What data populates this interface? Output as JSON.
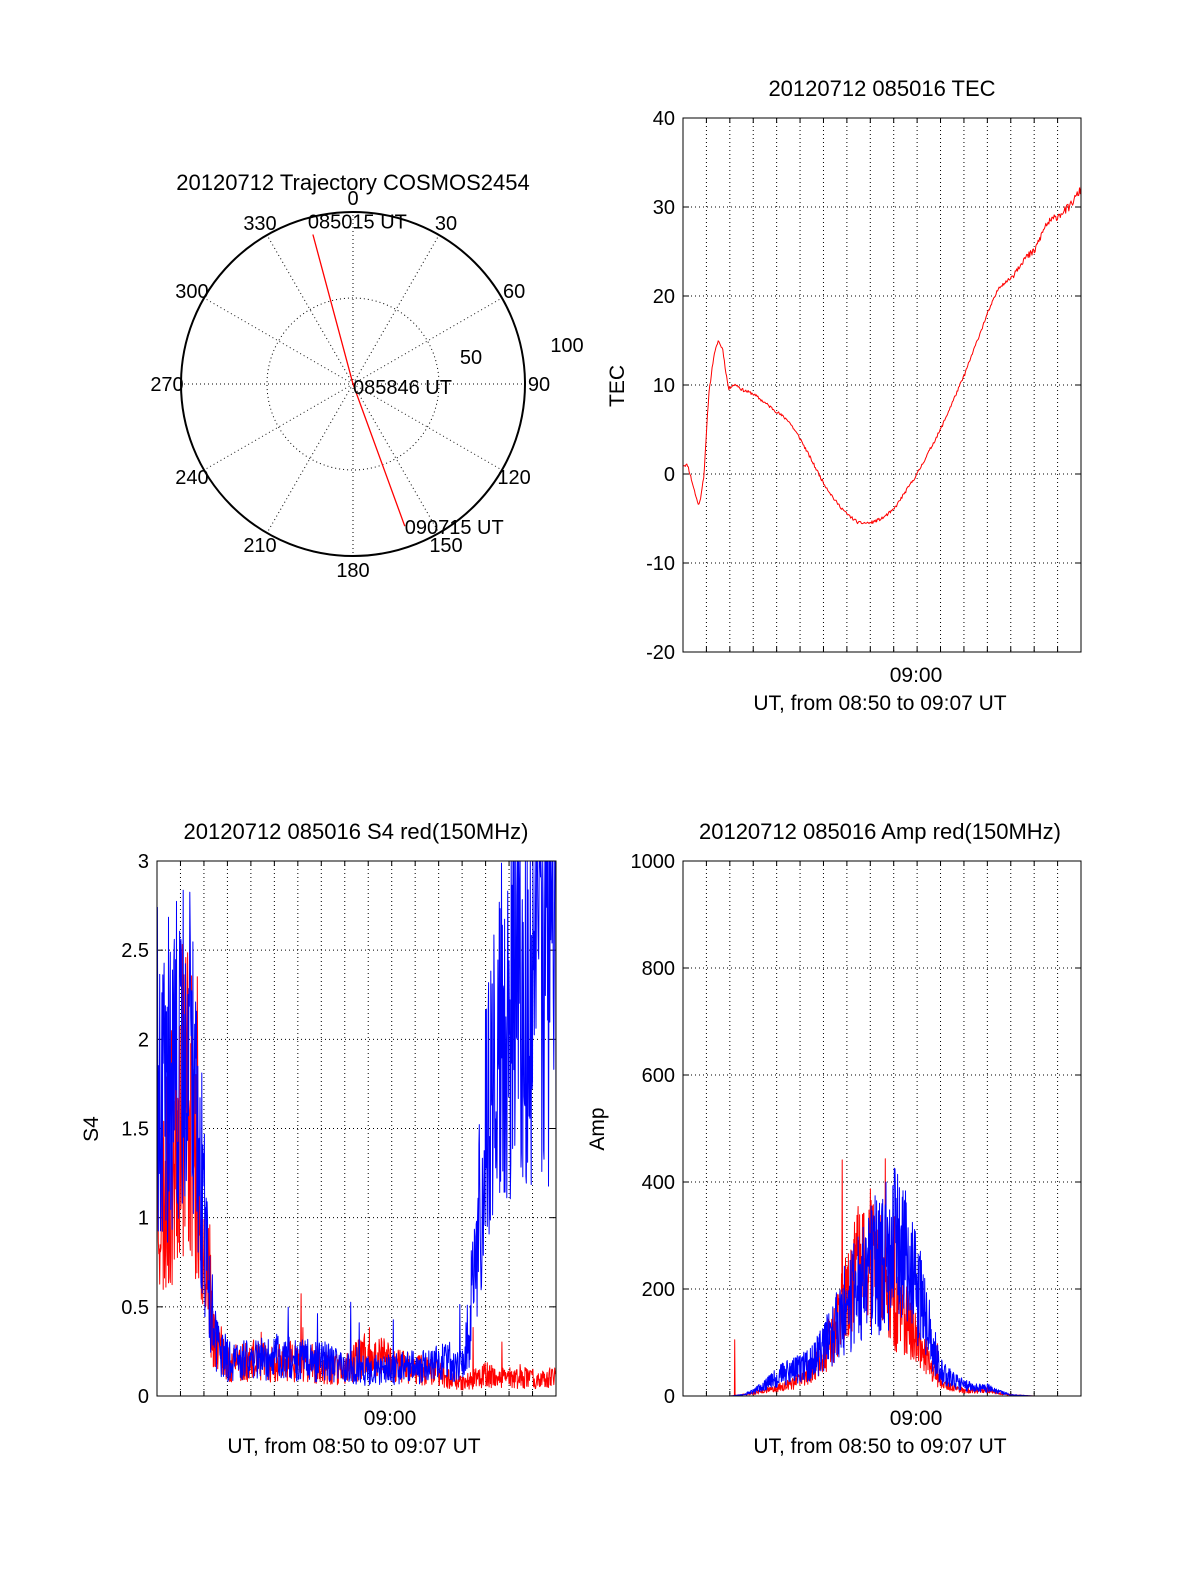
{
  "colors": {
    "red": "#ff0000",
    "blue": "#0000ff"
  },
  "chart_data": [
    {
      "id": "trajectory",
      "type": "polar",
      "title": "20120712 Trajectory COSMOS2454",
      "azimuth_labels": [
        "0",
        "30",
        "60",
        "90",
        "120",
        "150",
        "180",
        "210",
        "240",
        "270",
        "300",
        "330"
      ],
      "radial_labels": [
        "50",
        "100"
      ],
      "radial_max": 100,
      "track": {
        "color": "#ff0000",
        "points": [
          {
            "az": 345,
            "zen": 90,
            "label": "085015 UT"
          },
          {
            "az": 0,
            "zen": 0,
            "label": "085846 UT"
          },
          {
            "az": 160,
            "zen": 88,
            "label": "090715 UT"
          }
        ]
      }
    },
    {
      "id": "tec",
      "type": "line",
      "title": "20120712 085016 TEC",
      "ylabel": "TEC",
      "xlabel": "UT, from 08:50 to 09:07 UT",
      "x_tick_label": "09:00",
      "ylim": [
        -20,
        40
      ],
      "yticks": [
        "-20",
        "-10",
        "0",
        "10",
        "20",
        "30",
        "40"
      ],
      "xlim_minutes": [
        0,
        17.0
      ],
      "series": [
        {
          "color": "#ff0000",
          "x": [
            0.2,
            0.4,
            0.6,
            0.7,
            0.9,
            1.1,
            1.3,
            1.5,
            1.7,
            1.8,
            1.95,
            2.1,
            2.3,
            2.5,
            3.0,
            3.5,
            4.0,
            4.5,
            5.0,
            5.5,
            6.0,
            6.5,
            7.0,
            7.5,
            8.0,
            8.5,
            9.0,
            9.5,
            10.0,
            10.5,
            11.0,
            11.5,
            12.0,
            12.5,
            13.0,
            13.5,
            14.0,
            14.5,
            15.0,
            15.5,
            16.0,
            16.5,
            17.0
          ],
          "y": [
            1,
            -1,
            -3,
            -3.5,
            0,
            9,
            13,
            15,
            14,
            12,
            9.5,
            10,
            10,
            9.5,
            9,
            8,
            7,
            6,
            4,
            1.5,
            -1,
            -3,
            -4.5,
            -5.5,
            -5.5,
            -5,
            -4,
            -2,
            0,
            2.5,
            5,
            8,
            11,
            14.5,
            18,
            21,
            22,
            24,
            25,
            28,
            29,
            30,
            32
          ]
        }
      ]
    },
    {
      "id": "s4",
      "type": "line",
      "title": "20120712 085016 S4 red(150MHz)",
      "ylabel": "S4",
      "xlabel": "UT, from 08:50 to 09:07 UT",
      "x_tick_label": "09:00",
      "ylim": [
        0,
        3
      ],
      "yticks": [
        "0",
        "0.5",
        "1",
        "1.5",
        "2",
        "2.5",
        "3"
      ],
      "xlim_minutes": [
        0,
        17.0
      ],
      "series": [
        {
          "color": "#ff0000",
          "x": [
            0.0,
            0.3,
            0.6,
            0.9,
            1.2,
            1.5,
            1.8,
            2.0,
            2.2,
            2.5,
            3.0,
            4.0,
            5.0,
            6.0,
            7.0,
            8.0,
            8.5,
            9.0,
            10.0,
            11.0,
            12.0,
            12.5,
            13.0,
            13.3,
            13.6,
            14.0,
            14.5,
            15.0,
            15.5,
            16.0,
            16.5,
            17.0
          ],
          "y": [
            1.2,
            1.1,
            1.3,
            1.6,
            1.8,
            1.6,
            1.2,
            0.9,
            0.6,
            0.3,
            0.18,
            0.2,
            0.18,
            0.2,
            0.17,
            0.15,
            0.2,
            0.25,
            0.18,
            0.15,
            0.13,
            0.1,
            0.08,
            0.08,
            0.1,
            0.12,
            0.1,
            0.1,
            0.1,
            0.1,
            0.1,
            0.1
          ]
        },
        {
          "color": "#0000ff",
          "x": [
            0.0,
            0.3,
            0.6,
            0.9,
            1.2,
            1.5,
            1.8,
            2.0,
            2.2,
            2.5,
            3.0,
            4.0,
            5.0,
            6.0,
            7.0,
            8.0,
            9.0,
            10.0,
            11.0,
            12.0,
            12.5,
            13.0,
            13.3,
            13.6,
            14.0,
            14.5,
            15.0,
            15.5,
            16.0,
            16.5,
            17.0
          ],
          "y": [
            1.8,
            1.6,
            1.9,
            1.8,
            2.0,
            1.8,
            1.4,
            1.0,
            0.6,
            0.3,
            0.2,
            0.2,
            0.22,
            0.2,
            0.2,
            0.15,
            0.14,
            0.15,
            0.16,
            0.18,
            0.2,
            0.15,
            0.4,
            0.9,
            1.5,
            2.0,
            2.3,
            2.5,
            2.6,
            2.5,
            2.7
          ]
        }
      ]
    },
    {
      "id": "amp",
      "type": "line",
      "title": "20120712 085016 Amp red(150MHz)",
      "ylabel": "Amp",
      "xlabel": "UT, from 08:50 to 09:07 UT",
      "x_tick_label": "09:00",
      "ylim": [
        0,
        1000
      ],
      "yticks": [
        "0",
        "200",
        "400",
        "600",
        "800",
        "1000"
      ],
      "xlim_minutes": [
        0,
        17.0
      ],
      "series": [
        {
          "color": "#ff0000",
          "x": [
            0.0,
            1.0,
            2.0,
            2.5,
            3.0,
            3.5,
            4.0,
            4.5,
            5.0,
            5.5,
            6.0,
            6.5,
            7.0,
            7.5,
            8.0,
            8.5,
            9.0,
            9.5,
            10.0,
            10.5,
            11.0,
            11.5,
            12.0,
            12.5,
            13.0,
            13.5,
            14.0,
            15.0,
            17.0
          ],
          "y": [
            0,
            0,
            0,
            2,
            5,
            10,
            15,
            20,
            30,
            50,
            80,
            120,
            180,
            240,
            260,
            220,
            160,
            140,
            120,
            60,
            25,
            15,
            10,
            10,
            12,
            5,
            2,
            0,
            0
          ]
        },
        {
          "color": "#0000ff",
          "x": [
            0.0,
            1.0,
            2.0,
            2.5,
            3.0,
            3.5,
            4.0,
            4.5,
            5.0,
            5.5,
            6.0,
            6.5,
            7.0,
            7.5,
            8.0,
            8.5,
            9.0,
            9.5,
            10.0,
            10.5,
            11.0,
            11.5,
            12.0,
            12.5,
            13.0,
            13.5,
            14.0,
            15.0,
            17.0
          ],
          "y": [
            0,
            0,
            0,
            2,
            8,
            20,
            35,
            45,
            50,
            60,
            90,
            120,
            170,
            200,
            230,
            260,
            280,
            250,
            200,
            120,
            50,
            30,
            20,
            15,
            15,
            8,
            2,
            0,
            0
          ]
        }
      ]
    }
  ]
}
